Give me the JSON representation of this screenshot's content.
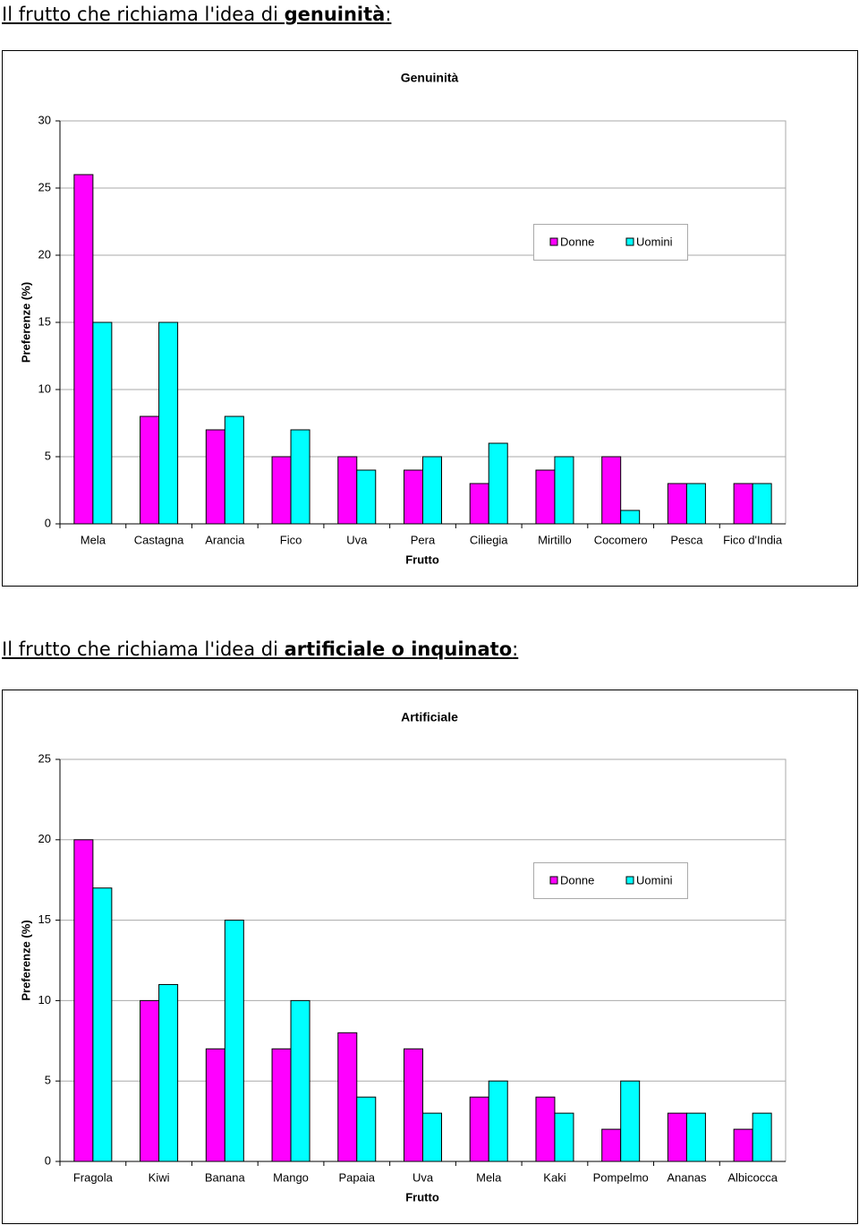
{
  "headings": [
    {
      "parts": [
        {
          "text": "Il frutto che richiama l'idea di "
        },
        {
          "text": "genuinità",
          "bold": true
        },
        {
          "text": ":"
        }
      ]
    },
    {
      "parts": [
        {
          "text": "Il frutto che richiama l'idea di "
        },
        {
          "text": "artificiale o inquinato",
          "bold": true
        },
        {
          "text": ":"
        }
      ]
    }
  ],
  "chart_data": [
    {
      "type": "bar",
      "title": "Genuinità",
      "xlabel": "Frutto",
      "ylabel": "Preferenze (%)",
      "categories": [
        "Mela",
        "Castagna",
        "Arancia",
        "Fico",
        "Uva",
        "Pera",
        "Ciliegia",
        "Mirtillo",
        "Cocomero",
        "Pesca",
        "Fico d'India"
      ],
      "series": [
        {
          "name": "Donne",
          "color": "#ff00ff",
          "values": [
            26,
            8,
            7,
            5,
            5,
            4,
            3,
            4,
            5,
            3,
            3
          ]
        },
        {
          "name": "Uomini",
          "color": "#00ffff",
          "values": [
            15,
            15,
            8,
            7,
            4,
            5,
            6,
            5,
            1,
            3,
            3
          ]
        }
      ],
      "ylim": [
        0,
        30
      ],
      "yticks": [
        0,
        5,
        10,
        15,
        20,
        25,
        30
      ],
      "grid": true,
      "legend": "upper right"
    },
    {
      "type": "bar",
      "title": "Artificiale",
      "xlabel": "Frutto",
      "ylabel": "Preferenze (%)",
      "categories": [
        "Fragola",
        "Kiwi",
        "Banana",
        "Mango",
        "Papaia",
        "Uva",
        "Mela",
        "Kaki",
        "Pompelmo",
        "Ananas",
        "Albicocca"
      ],
      "series": [
        {
          "name": "Donne",
          "color": "#ff00ff",
          "values": [
            20,
            10,
            7,
            7,
            8,
            7,
            4,
            4,
            2,
            3,
            2
          ]
        },
        {
          "name": "Uomini",
          "color": "#00ffff",
          "values": [
            17,
            11,
            15,
            10,
            4,
            3,
            5,
            3,
            5,
            3,
            3
          ]
        }
      ],
      "ylim": [
        0,
        25
      ],
      "yticks": [
        0,
        5,
        10,
        15,
        20,
        25
      ],
      "grid": true,
      "legend": "upper right"
    }
  ]
}
